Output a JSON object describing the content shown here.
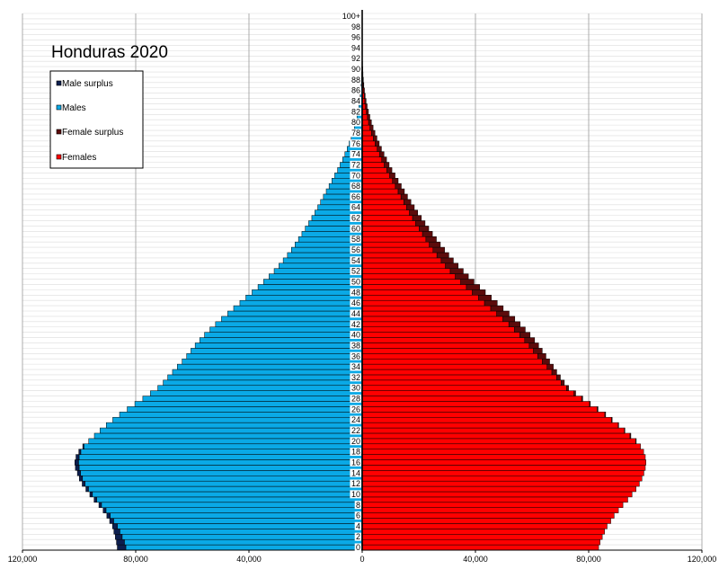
{
  "chart_data": {
    "type": "bar",
    "title": "Honduras 2020",
    "orientation": "horizontal-population-pyramid",
    "x_ticks": [
      "120,000",
      "80,000",
      "40,000",
      "0",
      "40,000",
      "80,000",
      "120,000"
    ],
    "x_tick_values": [
      -120000,
      -80000,
      -40000,
      0,
      40000,
      80000,
      120000
    ],
    "xlim": [
      -120000,
      120000
    ],
    "grid": true,
    "legend_position": "top-left",
    "legend": [
      "Male surplus",
      "Males",
      "Female surplus",
      "Females"
    ],
    "colors": {
      "male_surplus": "#0d1f4f",
      "males": "#0aa9e6",
      "female_surplus": "#5c0b0b",
      "females": "#ff0000"
    },
    "age_tick_labels": [
      "0",
      "2",
      "4",
      "6",
      "8",
      "10",
      "12",
      "14",
      "16",
      "18",
      "20",
      "22",
      "24",
      "26",
      "28",
      "30",
      "32",
      "34",
      "36",
      "38",
      "40",
      "42",
      "44",
      "46",
      "48",
      "50",
      "52",
      "54",
      "56",
      "58",
      "60",
      "62",
      "64",
      "66",
      "68",
      "70",
      "72",
      "74",
      "76",
      "78",
      "80",
      "82",
      "84",
      "86",
      "88",
      "90",
      "92",
      "94",
      "96",
      "98",
      "100+"
    ],
    "categories": [
      "0",
      "1",
      "2",
      "3",
      "4",
      "5",
      "6",
      "7",
      "8",
      "9",
      "10",
      "11",
      "12",
      "13",
      "14",
      "15",
      "16",
      "17",
      "18",
      "19",
      "20",
      "21",
      "22",
      "23",
      "24",
      "25",
      "26",
      "27",
      "28",
      "29",
      "30",
      "31",
      "32",
      "33",
      "34",
      "35",
      "36",
      "37",
      "38",
      "39",
      "40",
      "41",
      "42",
      "43",
      "44",
      "45",
      "46",
      "47",
      "48",
      "49",
      "50",
      "51",
      "52",
      "53",
      "54",
      "55",
      "56",
      "57",
      "58",
      "59",
      "60",
      "61",
      "62",
      "63",
      "64",
      "65",
      "66",
      "67",
      "68",
      "69",
      "70",
      "71",
      "72",
      "73",
      "74",
      "75",
      "76",
      "77",
      "78",
      "79",
      "80",
      "81",
      "82",
      "83",
      "84",
      "85",
      "86",
      "87",
      "88",
      "89",
      "90",
      "91",
      "92",
      "93",
      "94",
      "95",
      "96",
      "97",
      "98",
      "99",
      "100+"
    ],
    "series": [
      {
        "name": "Males",
        "values": [
          86500,
          86800,
          87200,
          87700,
          88200,
          89200,
          90200,
          91500,
          93000,
          94700,
          96200,
          97600,
          98900,
          99900,
          100600,
          101300,
          101500,
          101100,
          100100,
          98700,
          96600,
          94600,
          92600,
          90400,
          88100,
          85700,
          83000,
          80300,
          77500,
          74800,
          72200,
          70300,
          68700,
          67000,
          65300,
          63600,
          62000,
          60500,
          59000,
          57400,
          55700,
          53800,
          51800,
          49700,
          47500,
          45400,
          43200,
          41100,
          38900,
          36800,
          34800,
          32900,
          31100,
          29400,
          27900,
          26400,
          25000,
          23700,
          22500,
          21300,
          20100,
          18900,
          17800,
          16700,
          15700,
          14700,
          13700,
          12700,
          11700,
          10700,
          9700,
          8700,
          7800,
          6900,
          6100,
          5300,
          4600,
          3900,
          3300,
          2750,
          2250,
          1850,
          1480,
          1180,
          930,
          710,
          530,
          380,
          270,
          180,
          120,
          80,
          50,
          30,
          20,
          12,
          8,
          5,
          3,
          2,
          1
        ]
      },
      {
        "name": "Females",
        "values": [
          83500,
          84000,
          84800,
          85600,
          86500,
          87800,
          89000,
          90500,
          92100,
          93800,
          95300,
          96700,
          97900,
          98800,
          99500,
          100000,
          100200,
          100000,
          99400,
          98300,
          96800,
          94900,
          92800,
          90600,
          88300,
          86000,
          83300,
          80600,
          77900,
          75400,
          72900,
          71400,
          70000,
          68700,
          67500,
          66200,
          64900,
          63600,
          62300,
          60900,
          59300,
          57600,
          55800,
          53900,
          51900,
          49800,
          47700,
          45600,
          43500,
          41500,
          39500,
          37500,
          35700,
          33900,
          32200,
          30600,
          29100,
          27600,
          26200,
          24800,
          23500,
          22200,
          20900,
          19600,
          18400,
          17200,
          16000,
          14900,
          13800,
          12700,
          11600,
          10500,
          9500,
          8600,
          7700,
          6800,
          6000,
          5200,
          4500,
          3850,
          3250,
          2700,
          2200,
          1750,
          1380,
          1060,
          800,
          580,
          410,
          280,
          185,
          120,
          78,
          48,
          30,
          18,
          11,
          7,
          4,
          2,
          1
        ]
      }
    ]
  }
}
